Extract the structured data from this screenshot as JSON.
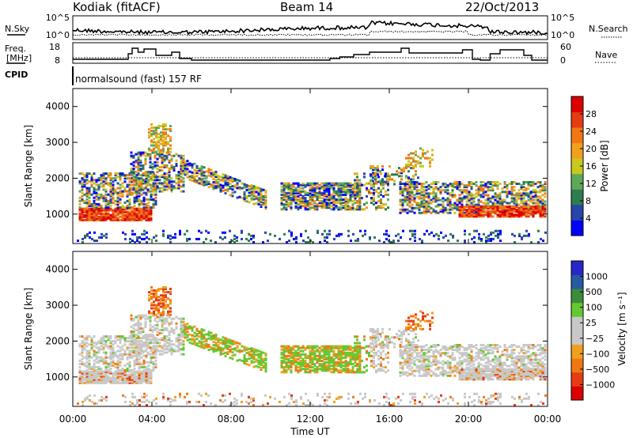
{
  "header": {
    "station": "Kodiak (fitACF)",
    "beam": "Beam 14",
    "date": "22/Oct/2013"
  },
  "param_panel": {
    "nsky_label": "N.Sky",
    "nsearch_label": "N.Search",
    "freq_label_1": "Freq.",
    "freq_label_2": "[MHz]",
    "nave_label": "Nave",
    "cpid_label": "CPID",
    "cpid_value": "normalsound (fast) 157 RF",
    "noise_ticks": [
      "10^5",
      "10^0"
    ],
    "freq_ticks": [
      "18",
      "8"
    ],
    "nave_ticks": [
      "60",
      "0"
    ]
  },
  "colors": {
    "power_scale": [
      "#0000ff",
      "#2845a8",
      "#2e7d4f",
      "#5fa85a",
      "#c8c81e",
      "#f0a01e",
      "#f07814",
      "#e63c14",
      "#dc0000"
    ],
    "velocity_scale": [
      "#2828c8",
      "#285aa0",
      "#3c8c3c",
      "#64c832",
      "#c8c8c8",
      "#c8c8c8",
      "#f0a01e",
      "#f07814",
      "#e63c14",
      "#dc0000"
    ]
  },
  "chart_data": [
    {
      "type": "heatmap",
      "panel": "power",
      "ylabel": "Slant Range [km]",
      "xlim": [
        0,
        24
      ],
      "ylim": [
        180,
        4500
      ],
      "yticks": [
        "1000",
        "2000",
        "3000",
        "4000"
      ],
      "colorbar_label": "Power [dB]",
      "colorbar_ticks": [
        "4",
        "8",
        "12",
        "16",
        "20",
        "24",
        "28"
      ],
      "colorbar_range": [
        0,
        32
      ]
    },
    {
      "type": "heatmap",
      "panel": "velocity",
      "ylabel": "Slant Range [km]",
      "xlabel": "Time UT",
      "xlim": [
        0,
        24
      ],
      "ylim": [
        180,
        4500
      ],
      "xticks": [
        "00:00",
        "04:00",
        "08:00",
        "12:00",
        "16:00",
        "20:00",
        "00:00"
      ],
      "yticks": [
        "1000",
        "2000",
        "3000",
        "4000"
      ],
      "colorbar_label": "Velocity [m s⁻¹]",
      "colorbar_ticks": [
        "1000",
        "500",
        "100",
        "25",
        "−25",
        "−100",
        "−500",
        "−1000"
      ]
    }
  ]
}
